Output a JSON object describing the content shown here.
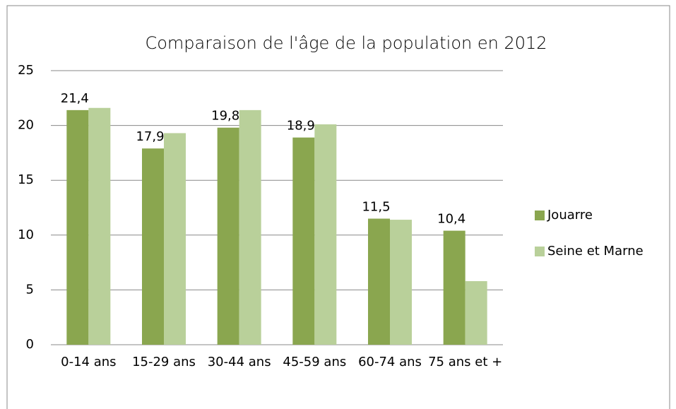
{
  "chart_data": {
    "type": "bar",
    "title": "Comparaison de l'âge de la population en 2012",
    "categories": [
      "0-14 ans",
      "15-29 ans",
      "30-44 ans",
      "45-59 ans",
      "60-74 ans",
      "75 ans et +"
    ],
    "series": [
      {
        "name": "Jouarre",
        "color": "#8aa64f",
        "values": [
          21.4,
          17.9,
          19.8,
          18.9,
          11.5,
          10.4
        ],
        "value_labels": [
          "21,4",
          "17,9",
          "19,8",
          "18,9",
          "11,5",
          "10,4"
        ]
      },
      {
        "name": "Seine et Marne",
        "color": "#b9d09a",
        "values": [
          21.6,
          19.3,
          21.4,
          20.1,
          11.4,
          5.8
        ]
      }
    ],
    "ylim": [
      0,
      25
    ],
    "yticks": [
      0,
      5,
      10,
      15,
      20,
      25
    ],
    "grid": true,
    "legend": "right"
  }
}
